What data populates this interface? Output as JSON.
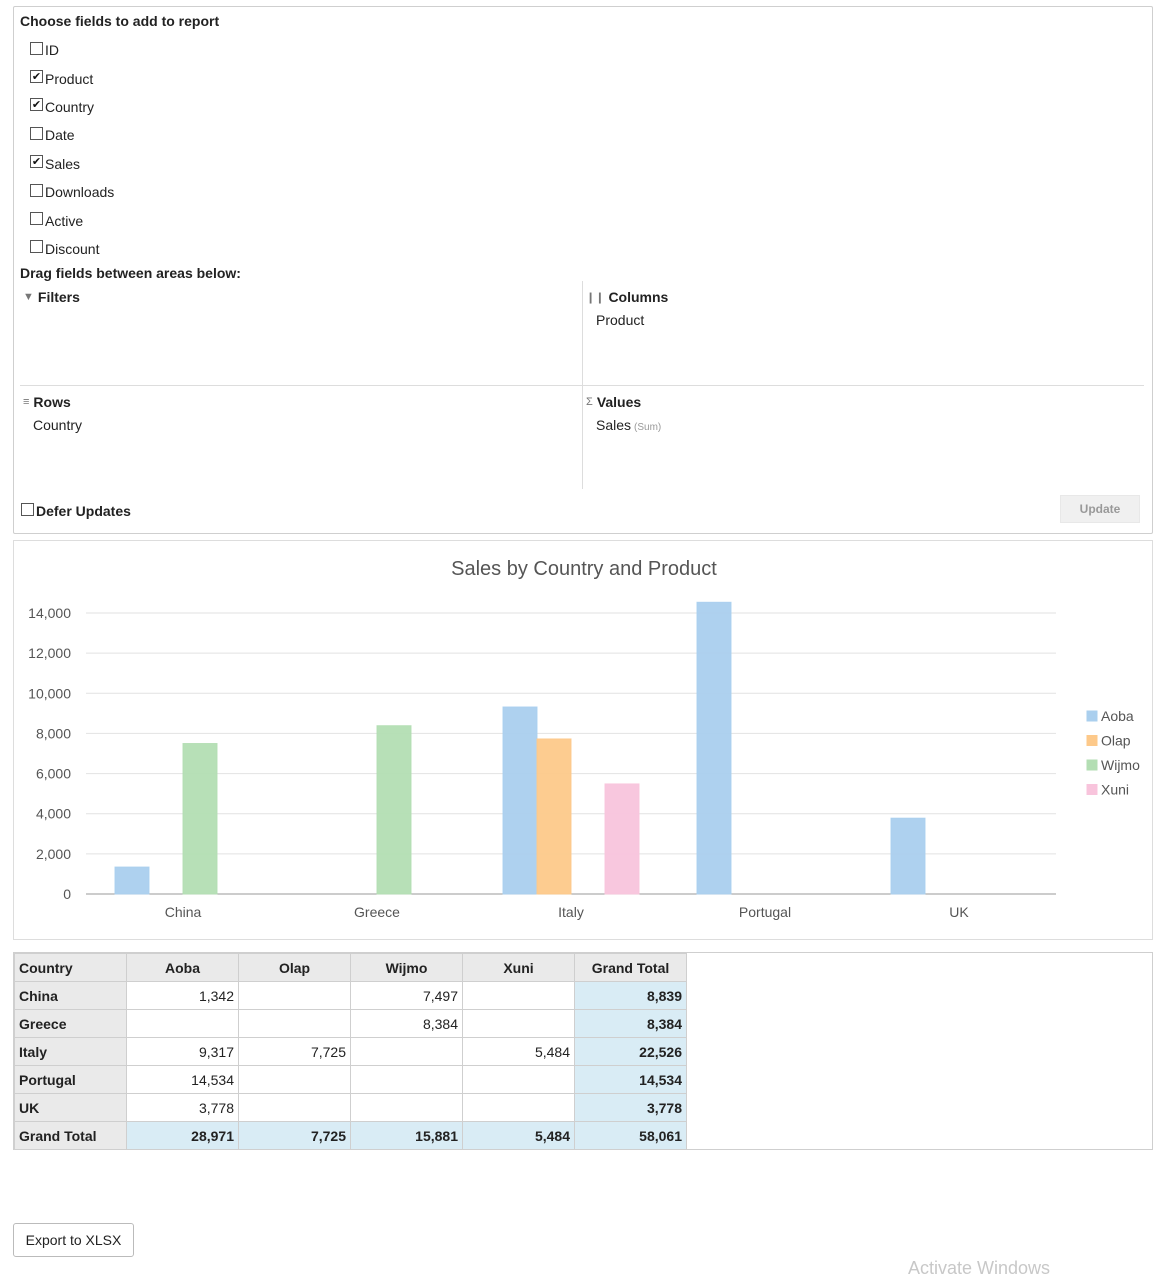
{
  "fields_panel": {
    "choose_title": "Choose fields to add to report",
    "fields": [
      {
        "label": "ID",
        "checked": false
      },
      {
        "label": "Product",
        "checked": true
      },
      {
        "label": "Country",
        "checked": true
      },
      {
        "label": "Date",
        "checked": false
      },
      {
        "label": "Sales",
        "checked": true
      },
      {
        "label": "Downloads",
        "checked": false
      },
      {
        "label": "Active",
        "checked": false
      },
      {
        "label": "Discount",
        "checked": false
      }
    ],
    "drag_title": "Drag fields between areas below:",
    "areas": {
      "filters": {
        "label": "Filters",
        "icon": "filter-icon",
        "fields": []
      },
      "columns": {
        "label": "Columns",
        "icon": "columns-icon",
        "fields": [
          "Product"
        ]
      },
      "rows": {
        "label": "Rows",
        "icon": "rows-icon",
        "fields": [
          "Country"
        ]
      },
      "values": {
        "label": "Values",
        "icon": "sigma-icon",
        "fields": [
          "Sales"
        ],
        "aggregate": "(Sum)"
      }
    },
    "defer_label": "Defer Updates",
    "defer_checked": false,
    "update_label": "Update"
  },
  "chart_data": {
    "type": "bar",
    "title": "Sales by Country and Product",
    "categories": [
      "China",
      "Greece",
      "Italy",
      "Portugal",
      "UK"
    ],
    "series": [
      {
        "name": "Aoba",
        "color": "#aacfee",
        "values": [
          1342,
          null,
          9317,
          14534,
          3778
        ]
      },
      {
        "name": "Olap",
        "color": "#fdc98a",
        "values": [
          null,
          null,
          7725,
          null,
          null
        ]
      },
      {
        "name": "Wijmo",
        "color": "#b3deb3",
        "values": [
          7497,
          8384,
          null,
          null,
          null
        ]
      },
      {
        "name": "Xuni",
        "color": "#f8c4dc",
        "values": [
          null,
          null,
          5484,
          null,
          null
        ]
      }
    ],
    "ylim": [
      0,
      14000
    ],
    "yticks": [
      "0",
      "2,000",
      "4,000",
      "6,000",
      "8,000",
      "10,000",
      "12,000",
      "14,000"
    ],
    "grid": true,
    "legend": "right"
  },
  "grid": {
    "header": [
      "Country",
      "Aoba",
      "Olap",
      "Wijmo",
      "Xuni",
      "Grand Total"
    ],
    "rows": [
      [
        "China",
        "1,342",
        "",
        "7,497",
        "",
        "8,839"
      ],
      [
        "Greece",
        "",
        "",
        "8,384",
        "",
        "8,384"
      ],
      [
        "Italy",
        "9,317",
        "7,725",
        "",
        "5,484",
        "22,526"
      ],
      [
        "Portugal",
        "14,534",
        "",
        "",
        "",
        "14,534"
      ],
      [
        "UK",
        "3,778",
        "",
        "",
        "",
        "3,778"
      ]
    ],
    "total_row": [
      "Grand Total",
      "28,971",
      "7,725",
      "15,881",
      "5,484",
      "58,061"
    ]
  },
  "export_label": "Export to XLSX",
  "watermark": "Activate Windows"
}
